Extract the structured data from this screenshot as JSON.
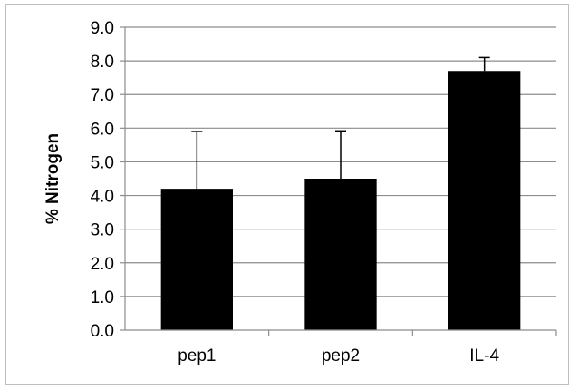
{
  "chart_data": {
    "type": "bar",
    "title": "",
    "xlabel": "",
    "ylabel": "% Nitrogen",
    "categories": [
      "pep1",
      "pep2",
      "IL-4"
    ],
    "values": [
      4.2,
      4.5,
      7.7
    ],
    "error_plus": [
      1.7,
      1.42,
      0.4
    ],
    "ylim": [
      0,
      9
    ],
    "ytick_step": 1,
    "ytick_labels": [
      "0.0",
      "1.0",
      "2.0",
      "3.0",
      "4.0",
      "5.0",
      "6.0",
      "7.0",
      "8.0",
      "9.0"
    ],
    "grid": true,
    "legend": "none",
    "bar_color": "#000000",
    "grid_color": "#8c8c8c"
  }
}
